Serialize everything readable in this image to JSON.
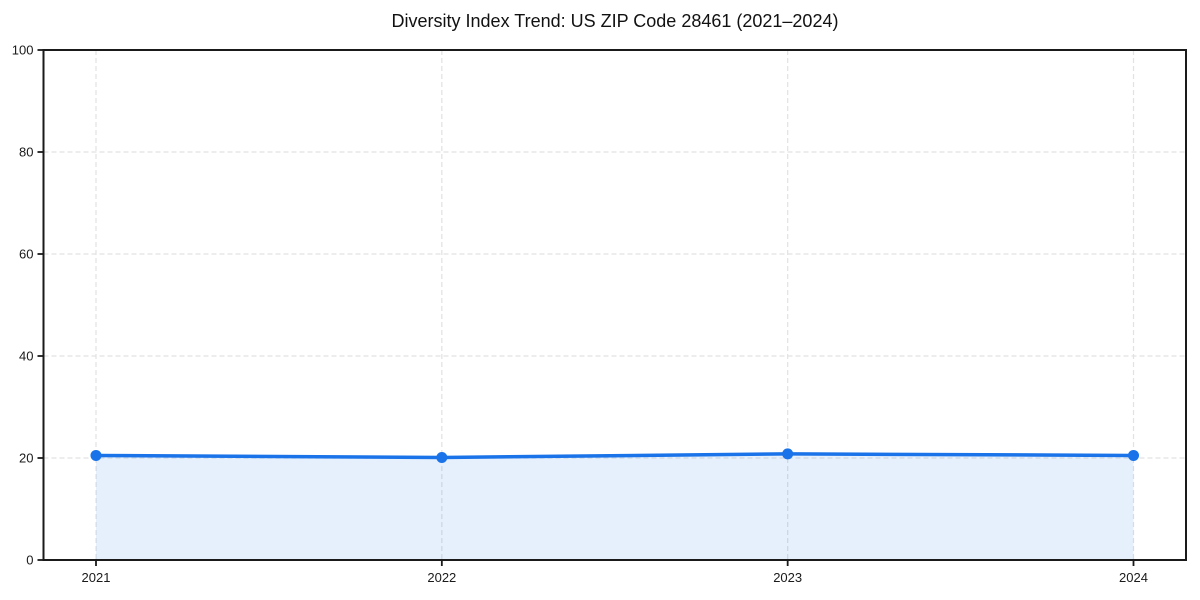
{
  "chart_data": {
    "type": "line",
    "title": "Diversity Index Trend: US ZIP Code 28461 (2021–2024)",
    "x": [
      2021,
      2022,
      2023,
      2024
    ],
    "categories": [
      "2021",
      "2022",
      "2023",
      "2024"
    ],
    "series": [
      {
        "name": "Diversity Index",
        "values": [
          20.5,
          20.1,
          20.8,
          20.5
        ]
      }
    ],
    "xlabel": "",
    "ylabel": "",
    "ylim": [
      0,
      100
    ],
    "yticks": [
      0,
      20,
      40,
      60,
      80,
      100
    ],
    "xtick_labels": [
      "2021",
      "2022",
      "2023",
      "2024"
    ],
    "grid": "on",
    "grid_style": "dashed",
    "legend": "none",
    "marker": "circle",
    "area_fill": true,
    "style": {
      "line_color": "#1a73e8",
      "marker_color": "#1a73e8",
      "area_color": "#1a73e8",
      "area_opacity": 0.11,
      "grid_color": "#e2e2e2",
      "axis_color": "#1a1a1a",
      "text_color": "#1a1a1a",
      "background": "#ffffff"
    }
  }
}
